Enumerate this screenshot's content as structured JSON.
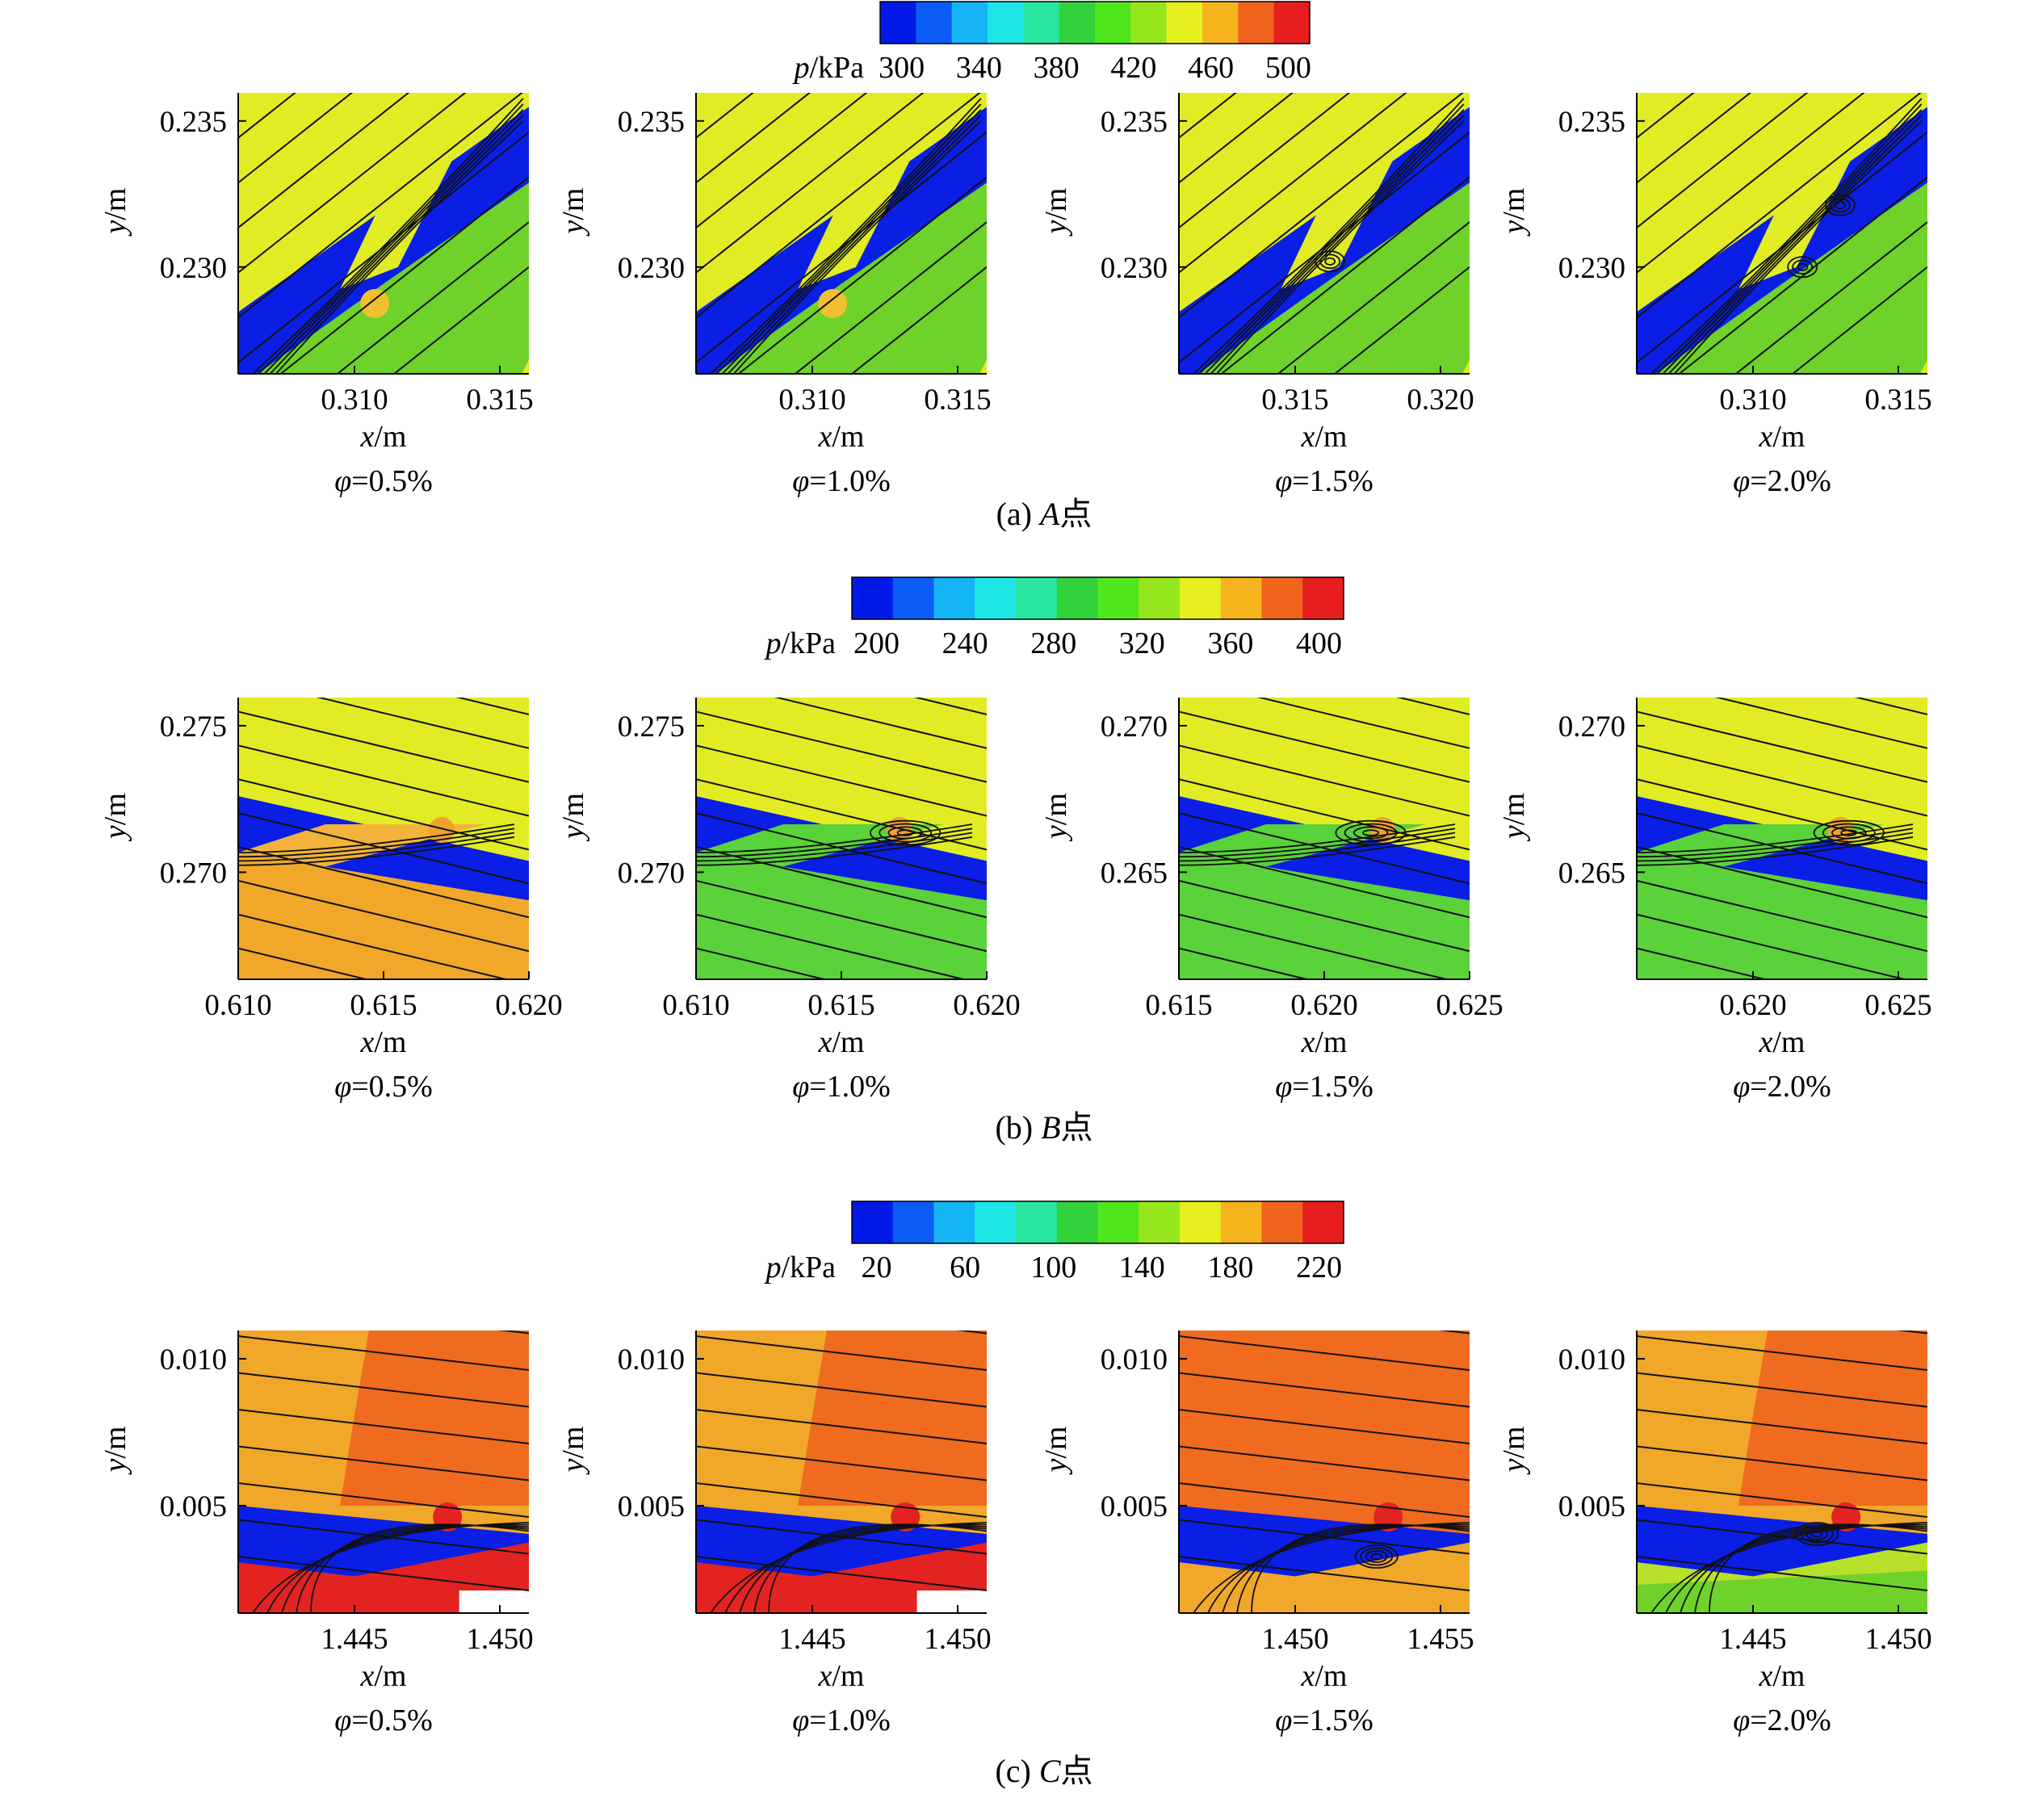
{
  "figure": {
    "rows": [
      {
        "caption": "(a) A点",
        "caption_italic": "A",
        "colorbar": {
          "label": "p/kPa",
          "ticks": [
            "300",
            "340",
            "380",
            "420",
            "460",
            "500"
          ],
          "colors": [
            "#0019e6",
            "#0a5cf5",
            "#14b4f5",
            "#1ee6e6",
            "#28e6a0",
            "#32d23c",
            "#50e61e",
            "#96e61e",
            "#e6f01e",
            "#f5b41e",
            "#f0641e",
            "#e61e1e"
          ]
        },
        "panels": [
          {
            "phi": "φ=0.5%",
            "xlabel": "x/m",
            "ylabel": "y/m",
            "xticks": [
              "0.310",
              "0.315"
            ],
            "yticks": [
              "0.235",
              "0.230"
            ],
            "vortex": false
          },
          {
            "phi": "φ=1.0%",
            "xlabel": "x/m",
            "ylabel": "y/m",
            "xticks": [
              "0.310",
              "0.315"
            ],
            "yticks": [
              "0.235",
              "0.230"
            ],
            "vortex": false
          },
          {
            "phi": "φ=1.5%",
            "xlabel": "x/m",
            "ylabel": "y/m",
            "xticks": [
              "0.315",
              "0.320"
            ],
            "yticks": [
              "0.235",
              "0.230"
            ],
            "vortex": true
          },
          {
            "phi": "φ=2.0%",
            "xlabel": "x/m",
            "ylabel": "y/m",
            "xticks": [
              "0.310",
              "0.315"
            ],
            "yticks": [
              "0.235",
              "0.230"
            ],
            "vortex": true
          }
        ]
      },
      {
        "caption": "(b) B点",
        "caption_italic": "B",
        "colorbar": {
          "label": "p/kPa",
          "ticks": [
            "200",
            "240",
            "280",
            "320",
            "360",
            "400"
          ],
          "colors": [
            "#0019e6",
            "#0a5cf5",
            "#14b4f5",
            "#1ee6e6",
            "#28e6a0",
            "#32d23c",
            "#50e61e",
            "#96e61e",
            "#e6f01e",
            "#f5b41e",
            "#f0641e",
            "#e61e1e"
          ]
        },
        "panels": [
          {
            "phi": "φ=0.5%",
            "xlabel": "x/m",
            "ylabel": "y/m",
            "xticks": [
              "0.610",
              "0.615",
              "0.620"
            ],
            "yticks": [
              "0.275",
              "0.270"
            ],
            "vortex": false
          },
          {
            "phi": "φ=1.0%",
            "xlabel": "x/m",
            "ylabel": "y/m",
            "xticks": [
              "0.610",
              "0.615",
              "0.620"
            ],
            "yticks": [
              "0.275",
              "0.270"
            ],
            "vortex": true
          },
          {
            "phi": "φ=1.5%",
            "xlabel": "x/m",
            "ylabel": "y/m",
            "xticks": [
              "0.615",
              "0.620",
              "0.625"
            ],
            "yticks": [
              "0.270",
              "0.265"
            ],
            "vortex": true
          },
          {
            "phi": "φ=2.0%",
            "xlabel": "x/m",
            "ylabel": "y/m",
            "xticks": [
              "0.620",
              "0.625"
            ],
            "yticks": [
              "0.270",
              "0.265"
            ],
            "vortex": true
          }
        ]
      },
      {
        "caption": "(c) C点",
        "caption_italic": "C",
        "colorbar": {
          "label": "p/kPa",
          "ticks": [
            "20",
            "60",
            "100",
            "140",
            "180",
            "220"
          ],
          "colors": [
            "#0019e6",
            "#0a5cf5",
            "#14b4f5",
            "#1ee6e6",
            "#28e6a0",
            "#32d23c",
            "#50e61e",
            "#96e61e",
            "#e6f01e",
            "#f5b41e",
            "#f0641e",
            "#e61e1e"
          ]
        },
        "panels": [
          {
            "phi": "φ=0.5%",
            "xlabel": "x/m",
            "ylabel": "y/m",
            "xticks": [
              "1.445",
              "1.450"
            ],
            "yticks": [
              "0.010",
              "0.005"
            ],
            "vortex": false
          },
          {
            "phi": "φ=1.0%",
            "xlabel": "x/m",
            "ylabel": "y/m",
            "xticks": [
              "1.445",
              "1.450"
            ],
            "yticks": [
              "0.010",
              "0.005"
            ],
            "vortex": false
          },
          {
            "phi": "φ=1.5%",
            "xlabel": "x/m",
            "ylabel": "y/m",
            "xticks": [
              "1.450",
              "1.455"
            ],
            "yticks": [
              "0.010",
              "0.005"
            ],
            "vortex": true
          },
          {
            "phi": "φ=2.0%",
            "xlabel": "x/m",
            "ylabel": "y/m",
            "xticks": [
              "1.445",
              "1.450"
            ],
            "yticks": [
              "0.010",
              "0.005"
            ],
            "vortex": true
          }
        ]
      }
    ]
  },
  "chart_data": [
    {
      "type": "heatmap",
      "point": "A",
      "phi": "0.5%",
      "colorbar_label": "p/kPa",
      "colorbar_ticks": [
        300,
        340,
        380,
        420,
        460,
        500
      ],
      "xlabel": "x/m",
      "ylabel": "y/m",
      "xticks": [
        0.31,
        0.315
      ],
      "yticks": [
        0.235,
        0.23
      ]
    },
    {
      "type": "heatmap",
      "point": "A",
      "phi": "1.0%",
      "colorbar_label": "p/kPa",
      "colorbar_ticks": [
        300,
        340,
        380,
        420,
        460,
        500
      ],
      "xlabel": "x/m",
      "ylabel": "y/m",
      "xticks": [
        0.31,
        0.315
      ],
      "yticks": [
        0.235,
        0.23
      ]
    },
    {
      "type": "heatmap",
      "point": "A",
      "phi": "1.5%",
      "colorbar_label": "p/kPa",
      "colorbar_ticks": [
        300,
        340,
        380,
        420,
        460,
        500
      ],
      "xlabel": "x/m",
      "ylabel": "y/m",
      "xticks": [
        0.315,
        0.32
      ],
      "yticks": [
        0.235,
        0.23
      ]
    },
    {
      "type": "heatmap",
      "point": "A",
      "phi": "2.0%",
      "colorbar_label": "p/kPa",
      "colorbar_ticks": [
        300,
        340,
        380,
        420,
        460,
        500
      ],
      "xlabel": "x/m",
      "ylabel": "y/m",
      "xticks": [
        0.31,
        0.315
      ],
      "yticks": [
        0.235,
        0.23
      ]
    },
    {
      "type": "heatmap",
      "point": "B",
      "phi": "0.5%",
      "colorbar_label": "p/kPa",
      "colorbar_ticks": [
        200,
        240,
        280,
        320,
        360,
        400
      ],
      "xlabel": "x/m",
      "ylabel": "y/m",
      "xticks": [
        0.61,
        0.615,
        0.62
      ],
      "yticks": [
        0.275,
        0.27
      ]
    },
    {
      "type": "heatmap",
      "point": "B",
      "phi": "1.0%",
      "colorbar_label": "p/kPa",
      "colorbar_ticks": [
        200,
        240,
        280,
        320,
        360,
        400
      ],
      "xlabel": "x/m",
      "ylabel": "y/m",
      "xticks": [
        0.61,
        0.615,
        0.62
      ],
      "yticks": [
        0.275,
        0.27
      ]
    },
    {
      "type": "heatmap",
      "point": "B",
      "phi": "1.5%",
      "colorbar_label": "p/kPa",
      "colorbar_ticks": [
        200,
        240,
        280,
        320,
        360,
        400
      ],
      "xlabel": "x/m",
      "ylabel": "y/m",
      "xticks": [
        0.615,
        0.62,
        0.625
      ],
      "yticks": [
        0.27,
        0.265
      ]
    },
    {
      "type": "heatmap",
      "point": "B",
      "phi": "2.0%",
      "colorbar_label": "p/kPa",
      "colorbar_ticks": [
        200,
        240,
        280,
        320,
        360,
        400
      ],
      "xlabel": "x/m",
      "ylabel": "y/m",
      "xticks": [
        0.62,
        0.625
      ],
      "yticks": [
        0.27,
        0.265
      ]
    },
    {
      "type": "heatmap",
      "point": "C",
      "phi": "0.5%",
      "colorbar_label": "p/kPa",
      "colorbar_ticks": [
        20,
        60,
        100,
        140,
        180,
        220
      ],
      "xlabel": "x/m",
      "ylabel": "y/m",
      "xticks": [
        1.445,
        1.45
      ],
      "yticks": [
        0.01,
        0.005
      ]
    },
    {
      "type": "heatmap",
      "point": "C",
      "phi": "1.0%",
      "colorbar_label": "p/kPa",
      "colorbar_ticks": [
        20,
        60,
        100,
        140,
        180,
        220
      ],
      "xlabel": "x/m",
      "ylabel": "y/m",
      "xticks": [
        1.445,
        1.45
      ],
      "yticks": [
        0.01,
        0.005
      ]
    },
    {
      "type": "heatmap",
      "point": "C",
      "phi": "1.5%",
      "colorbar_label": "p/kPa",
      "colorbar_ticks": [
        20,
        60,
        100,
        140,
        180,
        220
      ],
      "xlabel": "x/m",
      "ylabel": "y/m",
      "xticks": [
        1.45,
        1.455
      ],
      "yticks": [
        0.01,
        0.005
      ]
    },
    {
      "type": "heatmap",
      "point": "C",
      "phi": "2.0%",
      "colorbar_label": "p/kPa",
      "colorbar_ticks": [
        20,
        60,
        100,
        140,
        180,
        220
      ],
      "xlabel": "x/m",
      "ylabel": "y/m",
      "xticks": [
        1.445,
        1.45
      ],
      "yticks": [
        0.01,
        0.005
      ]
    }
  ]
}
